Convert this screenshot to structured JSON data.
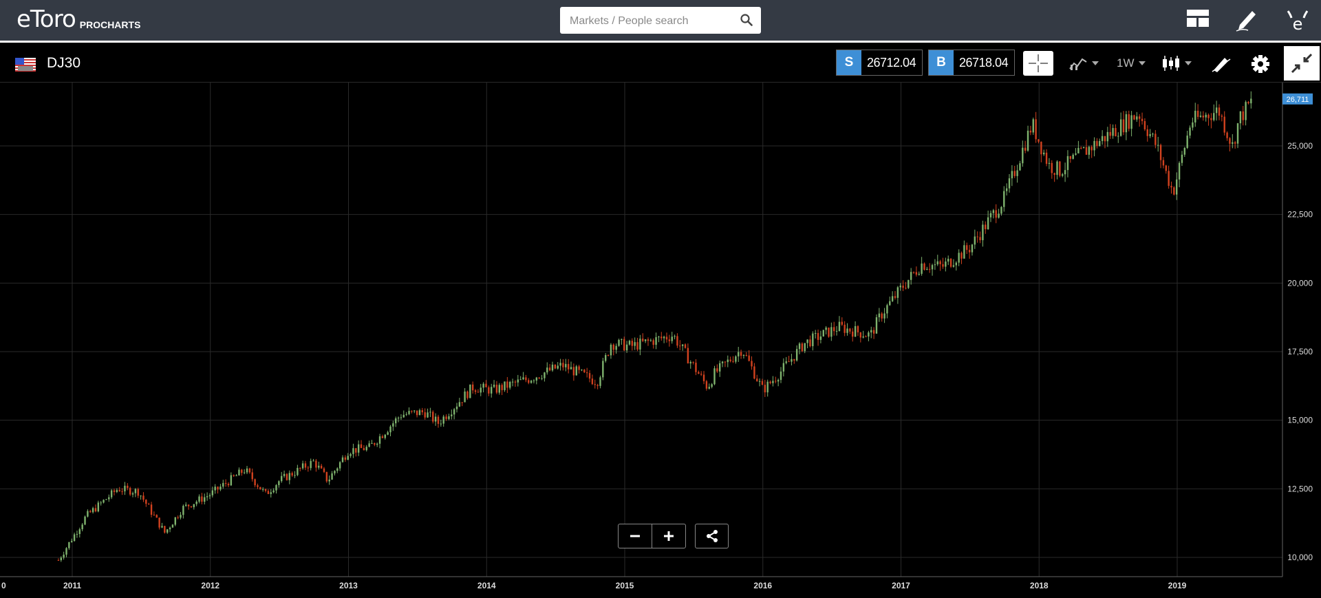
{
  "app": {
    "brand": "eToro",
    "product": "PROCHARTS",
    "search_placeholder": "Markets / People search"
  },
  "instrument": {
    "symbol": "DJ30",
    "sell_tag": "S",
    "sell_price": "26712.04",
    "buy_tag": "B",
    "buy_price": "26718.04",
    "timeframe": "1W"
  },
  "colors": {
    "up": "#7fb36e",
    "down": "#d2421f",
    "accent": "#3e8fd6",
    "grid": "#2a2a2a"
  },
  "icons": {
    "search": "search-icon",
    "layout": "layout-icon",
    "edit": "pencil-icon",
    "avatar": "etoro-avatar-icon",
    "crosshair": "crosshair-icon",
    "indicators": "indicators-icon",
    "candles": "candlestick-icon",
    "draw": "drawing-tools-icon",
    "settings": "gear-icon",
    "collapse": "collapse-icon",
    "zoom_out": "minus-icon",
    "zoom_in": "plus-icon",
    "share": "share-icon"
  },
  "chart_data": {
    "type": "candlestick",
    "title": "DJ30",
    "interval": "1W",
    "xlabel": "",
    "ylabel": "",
    "x_range": [
      2010.9,
      2019.63
    ],
    "ylim": [
      9700,
      27000
    ],
    "y_ticks": [
      "10,000",
      "12,500",
      "15,000",
      "17,500",
      "20,000",
      "22,500",
      "25,000"
    ],
    "x_ticks": [
      "0",
      "2011",
      "2012",
      "2013",
      "2014",
      "2015",
      "2016",
      "2017",
      "2018",
      "2019"
    ],
    "grid": true,
    "last_price_label": "26,711",
    "last_price": 26711,
    "series": [
      {
        "name": "",
        "x": [
          2010.9,
          2011.1,
          2011.33,
          2011.48,
          2011.58,
          2011.67,
          2011.8,
          2012.0,
          2012.25,
          2012.4,
          2012.5,
          2012.75,
          2012.85,
          2013.0,
          2013.15,
          2013.38,
          2013.55,
          2013.65,
          2013.9,
          2014.05,
          2014.3,
          2014.55,
          2014.8,
          2014.9,
          2015.05,
          2015.35,
          2015.6,
          2015.65,
          2015.85,
          2016.0,
          2016.1,
          2016.3,
          2016.55,
          2016.78,
          2016.85,
          2017.0,
          2017.15,
          2017.3,
          2017.5,
          2017.75,
          2017.95,
          2018.07,
          2018.15,
          2018.3,
          2018.5,
          2018.72,
          2018.85,
          2018.97,
          2019.1,
          2019.3,
          2019.4,
          2019.45,
          2019.55
        ],
        "close": [
          9900,
          11500,
          12500,
          12400,
          11600,
          10900,
          11800,
          12300,
          13200,
          12300,
          12800,
          13500,
          12800,
          13900,
          14000,
          15200,
          15300,
          14900,
          16200,
          16100,
          16500,
          17000,
          16400,
          17800,
          17700,
          18100,
          16200,
          16700,
          17600,
          16100,
          16600,
          17800,
          18400,
          18100,
          18800,
          19800,
          20700,
          20600,
          21300,
          23100,
          25800,
          24300,
          24100,
          24700,
          25400,
          26200,
          25000,
          23300,
          25900,
          26300,
          25000,
          26000,
          26700
        ]
      }
    ]
  }
}
